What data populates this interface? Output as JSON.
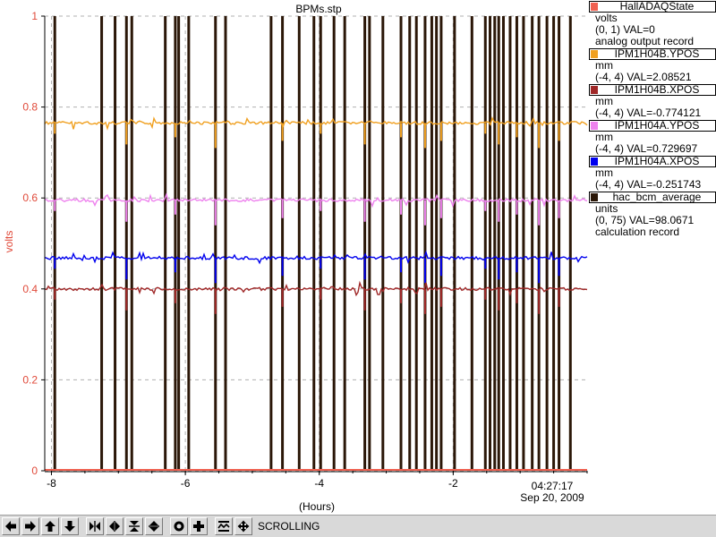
{
  "plot": {
    "title": "BPMs.stp",
    "ylabel": "volts",
    "xlabel": "(Hours)",
    "time": "04:27:17",
    "date": "Sep 20, 2009"
  },
  "chart_data": {
    "type": "line",
    "title": "BPMs.stp",
    "xlabel": "(Hours)",
    "ylabel": "volts",
    "xlim": [
      -8.1,
      0
    ],
    "ylim": [
      0,
      1
    ],
    "x_ticks": [
      "-8",
      "-6",
      "-4",
      "-2"
    ],
    "y_ticks": [
      "0",
      "0.2",
      "0.4",
      "0.6",
      "0.8",
      "1"
    ],
    "grid": true,
    "series": [
      {
        "name": "IPM1H04B.YPOS",
        "color": "#f0a020",
        "level": 0.765
      },
      {
        "name": "IPM1H04A.YPOS",
        "color": "#ee82ee",
        "level": 0.595
      },
      {
        "name": "IPM1H04A.XPOS",
        "color": "#0000ee",
        "level": 0.468
      },
      {
        "name": "IPM1H04B.XPOS",
        "color": "#a02828",
        "level": 0.4
      },
      {
        "name": "hac_bcm_average",
        "color": "#2b1708",
        "level": 0.0,
        "dropouts_hours": [
          -7.95,
          -7.25,
          -7.05,
          -6.88,
          -6.8,
          -6.3,
          -6.15,
          -6.1,
          -5.95,
          -5.55,
          -5.4,
          -4.72,
          -4.55,
          -4.3,
          -4.08,
          -3.98,
          -3.78,
          -3.62,
          -3.32,
          -3.25,
          -3.05,
          -2.78,
          -2.65,
          -2.55,
          -2.42,
          -2.32,
          -2.25,
          -2.18,
          -1.98,
          -1.72,
          -1.52,
          -1.45,
          -1.38,
          -1.32,
          -1.25,
          -1.15,
          -1.05,
          -0.95,
          -0.82,
          -0.72,
          -0.6,
          -0.5,
          -0.42,
          -0.25
        ]
      },
      {
        "name": "HallADAQState",
        "color": "#f06050",
        "level": 0.0
      }
    ]
  },
  "legend": [
    {
      "name": "HallADAQState",
      "color": "#f06050",
      "units": "volts",
      "range": "(0, 1) VAL=0",
      "desc": "analog output record"
    },
    {
      "name": "IPM1H04B.YPOS",
      "color": "#f0a020",
      "units": "mm",
      "range": "(-4, 4) VAL=2.08521",
      "desc": ""
    },
    {
      "name": "IPM1H04B.XPOS",
      "color": "#a02828",
      "units": "mm",
      "range": "(-4, 4) VAL=-0.774121",
      "desc": ""
    },
    {
      "name": "IPM1H04A.YPOS",
      "color": "#ee82ee",
      "units": "mm",
      "range": "(-4, 4) VAL=0.729697",
      "desc": ""
    },
    {
      "name": "IPM1H04A.XPOS",
      "color": "#0000ee",
      "units": "mm",
      "range": "(-4, 4) VAL=-0.251743",
      "desc": ""
    },
    {
      "name": "hac_bcm_average",
      "color": "#2b1708",
      "units": "units",
      "range": "(0, 75) VAL=98.0671",
      "desc": "calculation record"
    }
  ],
  "toolbar": {
    "buttons": [
      {
        "name": "pan-left-button",
        "icon": "arrow-left-icon"
      },
      {
        "name": "pan-right-button",
        "icon": "arrow-right-icon"
      },
      {
        "name": "pan-up-button",
        "icon": "arrow-up-icon"
      },
      {
        "name": "pan-down-button",
        "icon": "arrow-down-icon"
      },
      {
        "name": "zoom-in-x-button",
        "icon": "zoom-in-x-icon"
      },
      {
        "name": "zoom-out-x-button",
        "icon": "zoom-out-x-icon"
      },
      {
        "name": "zoom-in-y-button",
        "icon": "zoom-in-y-icon"
      },
      {
        "name": "zoom-out-y-button",
        "icon": "zoom-out-y-icon"
      },
      {
        "name": "reset-button",
        "icon": "circle-icon"
      },
      {
        "name": "add-button",
        "icon": "plus-icon"
      },
      {
        "name": "scroll-mode-button",
        "icon": "scroll-mode-icon"
      },
      {
        "name": "settings-button",
        "icon": "pan-icon"
      }
    ],
    "status": "SCROLLING"
  }
}
